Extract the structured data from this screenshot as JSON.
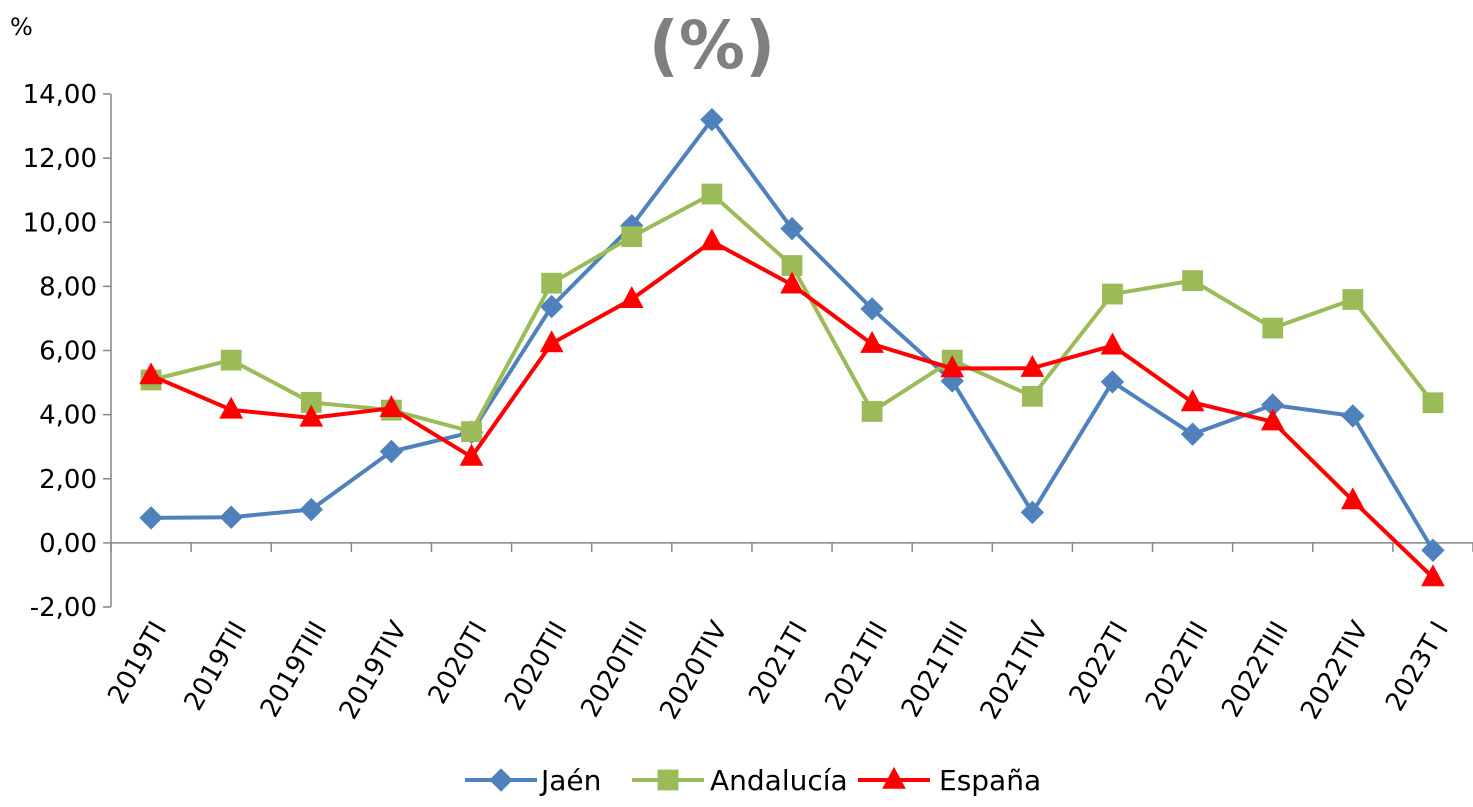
{
  "chart_data": {
    "type": "line",
    "title": "(%)",
    "ylabel": "%",
    "xlabel": "",
    "ylim": [
      -2,
      14
    ],
    "ytick_step": 2,
    "ytick_labels": [
      "-2,00",
      "0,00",
      "2,00",
      "4,00",
      "6,00",
      "8,00",
      "10,00",
      "12,00",
      "14,00"
    ],
    "grid": false,
    "legend_position": "bottom",
    "categories": [
      "2019TI",
      "2019TII",
      "2019TIII",
      "2019TIV",
      "2020TI",
      "2020TII",
      "2020TIII",
      "2020TIV",
      "2021TI",
      "2021TII",
      "2021TIII",
      "2021TIV",
      "2022TI",
      "2022TII",
      "2022TIII",
      "2022TIV",
      "2023T I"
    ],
    "series": [
      {
        "name": "Jaén",
        "color": "#4f81bd",
        "marker": "diamond",
        "values": [
          0.78,
          0.8,
          1.04,
          2.85,
          3.45,
          7.37,
          9.89,
          13.2,
          9.8,
          7.3,
          5.05,
          0.95,
          5.02,
          3.39,
          4.3,
          3.96,
          -0.23
        ]
      },
      {
        "name": "Andalucía",
        "color": "#9bbb59",
        "marker": "square",
        "values": [
          5.08,
          5.7,
          4.38,
          4.14,
          3.47,
          8.1,
          9.55,
          10.88,
          8.65,
          4.1,
          5.7,
          4.57,
          7.76,
          8.18,
          6.7,
          7.59,
          4.37
        ]
      },
      {
        "name": "España",
        "color": "#ff0000",
        "marker": "triangle",
        "values": [
          5.22,
          4.15,
          3.9,
          4.2,
          2.68,
          6.22,
          7.6,
          9.4,
          8.05,
          6.2,
          5.44,
          5.45,
          6.15,
          4.38,
          3.78,
          1.32,
          -1.08
        ]
      }
    ]
  }
}
